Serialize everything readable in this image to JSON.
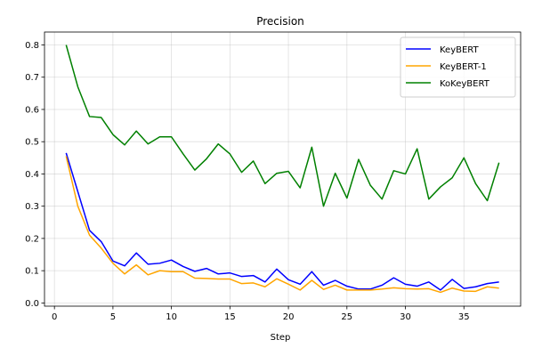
{
  "chart_data": {
    "type": "line",
    "title": "Precision",
    "xlabel": "Step",
    "ylabel": "",
    "xlim": [
      -0.85,
      39.85
    ],
    "ylim": [
      -0.01,
      0.84
    ],
    "xticks": [
      0,
      5,
      10,
      15,
      20,
      25,
      30,
      35
    ],
    "yticks": [
      0.0,
      0.1,
      0.2,
      0.3,
      0.4,
      0.5,
      0.6,
      0.7,
      0.8
    ],
    "ytick_labels": [
      "0.0",
      "0.1",
      "0.2",
      "0.3",
      "0.4",
      "0.5",
      "0.6",
      "0.7",
      "0.8"
    ],
    "grid": true,
    "legend_position": "top-right",
    "x": [
      1,
      2,
      3,
      4,
      5,
      6,
      7,
      8,
      9,
      10,
      11,
      12,
      13,
      14,
      15,
      16,
      17,
      18,
      19,
      20,
      21,
      22,
      23,
      24,
      25,
      26,
      27,
      28,
      29,
      30,
      31,
      32,
      33,
      34,
      35,
      36,
      37,
      38
    ],
    "series": [
      {
        "name": "KeyBERT",
        "color": "#0000ff",
        "values": [
          0.465,
          0.345,
          0.225,
          0.19,
          0.13,
          0.115,
          0.155,
          0.12,
          0.123,
          0.133,
          0.113,
          0.098,
          0.107,
          0.09,
          0.093,
          0.082,
          0.085,
          0.065,
          0.105,
          0.072,
          0.058,
          0.097,
          0.055,
          0.07,
          0.052,
          0.043,
          0.043,
          0.055,
          0.078,
          0.058,
          0.052,
          0.065,
          0.04,
          0.073,
          0.045,
          0.05,
          0.06,
          0.065
        ]
      },
      {
        "name": "KeyBERT-1",
        "color": "#ffa500",
        "values": [
          0.455,
          0.3,
          0.21,
          0.17,
          0.123,
          0.09,
          0.118,
          0.087,
          0.1,
          0.097,
          0.097,
          0.077,
          0.076,
          0.074,
          0.074,
          0.06,
          0.062,
          0.05,
          0.075,
          0.058,
          0.04,
          0.07,
          0.042,
          0.055,
          0.04,
          0.04,
          0.04,
          0.043,
          0.047,
          0.044,
          0.043,
          0.044,
          0.033,
          0.046,
          0.037,
          0.036,
          0.05,
          0.046
        ]
      },
      {
        "name": "KoKeyBERT",
        "color": "#008000",
        "values": [
          0.8,
          0.67,
          0.578,
          0.575,
          0.522,
          0.49,
          0.533,
          0.493,
          0.515,
          0.515,
          0.462,
          0.412,
          0.447,
          0.493,
          0.462,
          0.405,
          0.44,
          0.37,
          0.402,
          0.408,
          0.357,
          0.483,
          0.3,
          0.402,
          0.325,
          0.445,
          0.365,
          0.322,
          0.41,
          0.4,
          0.478,
          0.322,
          0.36,
          0.388,
          0.45,
          0.37,
          0.317,
          0.435
        ]
      }
    ]
  }
}
